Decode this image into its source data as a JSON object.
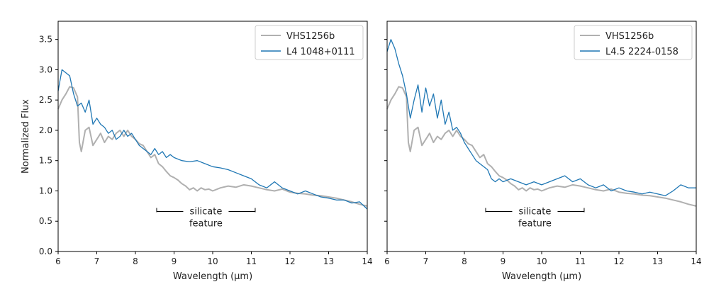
{
  "chart_data": [
    {
      "type": "line",
      "xlabel": "Wavelength (µm)",
      "ylabel": "Normalized Flux",
      "xlim": [
        6,
        14
      ],
      "ylim": [
        0.0,
        3.8
      ],
      "xticks": [
        "6",
        "7",
        "8",
        "9",
        "10",
        "11",
        "12",
        "13",
        "14"
      ],
      "yticks": [
        "0.0",
        "0.5",
        "1.0",
        "1.5",
        "2.0",
        "2.5",
        "3.0",
        "3.5"
      ],
      "legend_position": "top-right",
      "grid": false,
      "annotation": {
        "line1": "silicate",
        "line2": "feature",
        "x_start": 8.55,
        "x_end": 11.1,
        "y": 0.66
      },
      "series": [
        {
          "name": "VHS1256b",
          "color": "#b0b0b0",
          "x": [
            6.0,
            6.1,
            6.2,
            6.3,
            6.4,
            6.5,
            6.55,
            6.6,
            6.7,
            6.8,
            6.9,
            7.0,
            7.1,
            7.2,
            7.3,
            7.4,
            7.5,
            7.6,
            7.7,
            7.8,
            7.9,
            8.0,
            8.1,
            8.2,
            8.3,
            8.4,
            8.5,
            8.6,
            8.7,
            8.8,
            8.9,
            9.0,
            9.1,
            9.2,
            9.3,
            9.4,
            9.5,
            9.6,
            9.7,
            9.8,
            9.9,
            10.0,
            10.2,
            10.4,
            10.6,
            10.8,
            11.0,
            11.2,
            11.4,
            11.6,
            11.8,
            12.0,
            12.2,
            12.4,
            12.6,
            12.8,
            13.0,
            13.2,
            13.4,
            13.6,
            13.8,
            14.0
          ],
          "y": [
            2.35,
            2.5,
            2.6,
            2.72,
            2.7,
            2.55,
            1.8,
            1.65,
            2.0,
            2.05,
            1.75,
            1.85,
            1.95,
            1.8,
            1.9,
            1.85,
            1.95,
            2.0,
            1.9,
            2.0,
            1.9,
            1.85,
            1.78,
            1.75,
            1.65,
            1.55,
            1.6,
            1.45,
            1.4,
            1.32,
            1.25,
            1.22,
            1.18,
            1.12,
            1.08,
            1.02,
            1.05,
            1.0,
            1.05,
            1.02,
            1.03,
            1.0,
            1.05,
            1.08,
            1.06,
            1.1,
            1.08,
            1.05,
            1.02,
            1.0,
            1.03,
            0.98,
            0.96,
            0.95,
            0.93,
            0.92,
            0.9,
            0.88,
            0.85,
            0.82,
            0.78,
            0.75
          ]
        },
        {
          "name": "L4 1048+0111",
          "color": "#1f77b4",
          "x": [
            6.0,
            6.1,
            6.2,
            6.3,
            6.4,
            6.5,
            6.6,
            6.7,
            6.8,
            6.9,
            7.0,
            7.1,
            7.2,
            7.3,
            7.4,
            7.5,
            7.6,
            7.7,
            7.8,
            7.9,
            8.0,
            8.1,
            8.2,
            8.3,
            8.4,
            8.5,
            8.6,
            8.7,
            8.8,
            8.9,
            9.0,
            9.2,
            9.4,
            9.6,
            9.8,
            10.0,
            10.2,
            10.4,
            10.6,
            10.8,
            11.0,
            11.2,
            11.4,
            11.6,
            11.8,
            12.0,
            12.2,
            12.4,
            12.6,
            12.8,
            13.0,
            13.2,
            13.4,
            13.6,
            13.8,
            14.0
          ],
          "y": [
            2.65,
            3.0,
            2.95,
            2.9,
            2.6,
            2.4,
            2.45,
            2.3,
            2.5,
            2.1,
            2.2,
            2.1,
            2.05,
            1.95,
            2.0,
            1.85,
            1.9,
            2.0,
            1.9,
            1.95,
            1.85,
            1.75,
            1.7,
            1.65,
            1.6,
            1.7,
            1.6,
            1.65,
            1.55,
            1.6,
            1.55,
            1.5,
            1.48,
            1.5,
            1.45,
            1.4,
            1.38,
            1.35,
            1.3,
            1.25,
            1.2,
            1.1,
            1.05,
            1.15,
            1.05,
            1.0,
            0.95,
            1.0,
            0.95,
            0.9,
            0.88,
            0.85,
            0.85,
            0.8,
            0.82,
            0.7
          ]
        }
      ]
    },
    {
      "type": "line",
      "xlabel": "Wavelength (µm)",
      "ylabel": "",
      "xlim": [
        6,
        14
      ],
      "ylim": [
        0.0,
        3.8
      ],
      "xticks": [
        "6",
        "7",
        "8",
        "9",
        "10",
        "11",
        "12",
        "13",
        "14"
      ],
      "yticks": [],
      "legend_position": "top-right",
      "grid": false,
      "annotation": {
        "line1": "silicate",
        "line2": "feature",
        "x_start": 8.55,
        "x_end": 11.1,
        "y": 0.66
      },
      "series": [
        {
          "name": "VHS1256b",
          "color": "#b0b0b0",
          "x": [
            6.0,
            6.1,
            6.2,
            6.3,
            6.4,
            6.5,
            6.55,
            6.6,
            6.7,
            6.8,
            6.9,
            7.0,
            7.1,
            7.2,
            7.3,
            7.4,
            7.5,
            7.6,
            7.7,
            7.8,
            7.9,
            8.0,
            8.1,
            8.2,
            8.3,
            8.4,
            8.5,
            8.6,
            8.7,
            8.8,
            8.9,
            9.0,
            9.1,
            9.2,
            9.3,
            9.4,
            9.5,
            9.6,
            9.7,
            9.8,
            9.9,
            10.0,
            10.2,
            10.4,
            10.6,
            10.8,
            11.0,
            11.2,
            11.4,
            11.6,
            11.8,
            12.0,
            12.2,
            12.4,
            12.6,
            12.8,
            13.0,
            13.2,
            13.4,
            13.6,
            13.8,
            14.0
          ],
          "y": [
            2.35,
            2.5,
            2.6,
            2.72,
            2.7,
            2.55,
            1.8,
            1.65,
            2.0,
            2.05,
            1.75,
            1.85,
            1.95,
            1.8,
            1.9,
            1.85,
            1.95,
            2.0,
            1.9,
            2.0,
            1.9,
            1.85,
            1.78,
            1.75,
            1.65,
            1.55,
            1.6,
            1.45,
            1.4,
            1.32,
            1.25,
            1.22,
            1.18,
            1.12,
            1.08,
            1.02,
            1.05,
            1.0,
            1.05,
            1.02,
            1.03,
            1.0,
            1.05,
            1.08,
            1.06,
            1.1,
            1.08,
            1.05,
            1.02,
            1.0,
            1.03,
            0.98,
            0.96,
            0.95,
            0.93,
            0.92,
            0.9,
            0.88,
            0.85,
            0.82,
            0.78,
            0.75
          ]
        },
        {
          "name": "L4.5 2224-0158",
          "color": "#1f77b4",
          "x": [
            6.0,
            6.1,
            6.2,
            6.3,
            6.4,
            6.5,
            6.6,
            6.7,
            6.8,
            6.9,
            7.0,
            7.1,
            7.2,
            7.3,
            7.4,
            7.5,
            7.6,
            7.7,
            7.8,
            7.9,
            8.0,
            8.1,
            8.2,
            8.3,
            8.4,
            8.5,
            8.6,
            8.7,
            8.8,
            8.9,
            9.0,
            9.2,
            9.4,
            9.6,
            9.8,
            10.0,
            10.2,
            10.4,
            10.6,
            10.8,
            11.0,
            11.2,
            11.4,
            11.6,
            11.8,
            12.0,
            12.2,
            12.4,
            12.6,
            12.8,
            13.0,
            13.2,
            13.4,
            13.6,
            13.8,
            14.0
          ],
          "y": [
            3.3,
            3.5,
            3.35,
            3.1,
            2.9,
            2.6,
            2.2,
            2.5,
            2.75,
            2.3,
            2.7,
            2.4,
            2.6,
            2.2,
            2.5,
            2.1,
            2.3,
            2.0,
            2.05,
            1.95,
            1.8,
            1.7,
            1.6,
            1.5,
            1.45,
            1.4,
            1.35,
            1.2,
            1.15,
            1.2,
            1.15,
            1.2,
            1.15,
            1.1,
            1.15,
            1.1,
            1.15,
            1.2,
            1.25,
            1.15,
            1.2,
            1.1,
            1.05,
            1.1,
            1.0,
            1.05,
            1.0,
            0.98,
            0.95,
            0.98,
            0.95,
            0.92,
            1.0,
            1.1,
            1.05,
            1.05
          ]
        }
      ]
    }
  ]
}
